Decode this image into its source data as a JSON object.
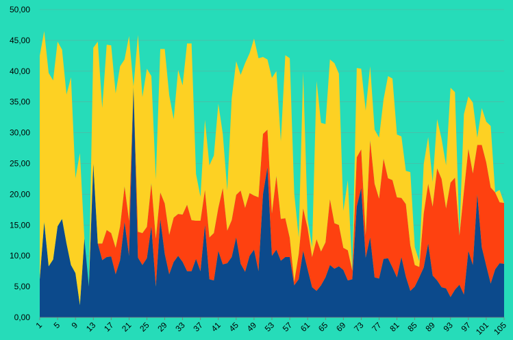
{
  "chart_data": {
    "type": "area",
    "stacked": true,
    "grid": true,
    "ylim": [
      0,
      50
    ],
    "yticks": [
      "0,00",
      "5,00",
      "10,00",
      "15,00",
      "20,00",
      "25,00",
      "30,00",
      "35,00",
      "40,00",
      "45,00",
      "50,00"
    ],
    "x": [
      1,
      2,
      3,
      4,
      5,
      6,
      7,
      8,
      9,
      10,
      11,
      12,
      13,
      14,
      15,
      16,
      17,
      18,
      19,
      20,
      21,
      22,
      23,
      24,
      25,
      26,
      27,
      28,
      29,
      30,
      31,
      32,
      33,
      34,
      35,
      36,
      37,
      38,
      39,
      40,
      41,
      42,
      43,
      44,
      45,
      46,
      47,
      48,
      49,
      50,
      51,
      52,
      53,
      54,
      55,
      56,
      57,
      58,
      59,
      60,
      61,
      62,
      63,
      64,
      65,
      66,
      67,
      68,
      69,
      70,
      71,
      72,
      73,
      74,
      75,
      76,
      77,
      78,
      79,
      80,
      81,
      82,
      83,
      84,
      85,
      86,
      87,
      88,
      89,
      90,
      91,
      92,
      93,
      94,
      95,
      96,
      97,
      98,
      99,
      100,
      101,
      102,
      103,
      104,
      105
    ],
    "xtick_labels": [
      "1",
      "5",
      "9",
      "13",
      "17",
      "21",
      "25",
      "29",
      "33",
      "37",
      "41",
      "45",
      "49",
      "53",
      "57",
      "61",
      "65",
      "69",
      "73",
      "77",
      "81",
      "85",
      "89",
      "93",
      "97",
      "101",
      "105"
    ],
    "series": [
      {
        "color": "#0c4a8c",
        "values": [
          6.2,
          15.5,
          8.3,
          9.4,
          14.8,
          16,
          12,
          8.5,
          7.2,
          2,
          12.8,
          5,
          25,
          12,
          9.3,
          9.8,
          9.9,
          7,
          9.3,
          15.5,
          10,
          37.5,
          9.7,
          8.5,
          9.6,
          14.8,
          5,
          16,
          10.3,
          7,
          9,
          10,
          9,
          7.5,
          7.5,
          9.5,
          7.5,
          15,
          6.2,
          6,
          10.8,
          8.6,
          8.8,
          9.8,
          13,
          8.7,
          7.4,
          10,
          11,
          7.5,
          20,
          24.4,
          10,
          11,
          9.2,
          9.8,
          9.8,
          5.2,
          6.2,
          10.8,
          7.8,
          4.9,
          4.3,
          5.2,
          6.5,
          8.5,
          7.9,
          8.3,
          7.7,
          6,
          6.2,
          18,
          21,
          9.7,
          13,
          6.5,
          6.3,
          9.5,
          9.6,
          8.1,
          6.5,
          9.8,
          6.6,
          4.3,
          5,
          6.5,
          8.1,
          12,
          6.8,
          6,
          4.9,
          4.7,
          3.3,
          4.5,
          5.3,
          3.7,
          10.8,
          8.5,
          20,
          11.4,
          8.4,
          5.5,
          7.8,
          8.8,
          8.7
        ]
      },
      {
        "color": "#fe4110",
        "values": [
          0,
          0,
          0,
          0,
          0,
          0,
          0,
          0,
          0,
          0,
          0,
          0,
          0,
          0,
          2.7,
          4.4,
          3.8,
          4.3,
          5.5,
          5.8,
          5.7,
          0,
          4.2,
          5.2,
          5.1,
          7,
          7.8,
          4.3,
          8.2,
          6.4,
          7.2,
          6.8,
          7.7,
          10.8,
          8.3,
          6.2,
          8.2,
          5.7,
          6.8,
          7.7,
          7,
          12.4,
          5.3,
          6,
          6.9,
          11.9,
          10.4,
          10.2,
          8.8,
          12,
          9.8,
          6.1,
          6.9,
          12,
          6.8,
          6.3,
          3.1,
          0.6,
          4.1,
          6.9,
          6.7,
          4.9,
          8.4,
          5.5,
          5.7,
          10.7,
          7.4,
          6.7,
          3.6,
          4.9,
          1.4,
          8,
          6.3,
          3.7,
          15.8,
          15.2,
          13,
          16.3,
          13,
          14.2,
          13,
          9.6,
          11.8,
          7.4,
          3.5,
          1.7,
          8.8,
          9.7,
          11.2,
          18.2,
          17.6,
          13,
          18.6,
          18.2,
          8,
          16.8,
          16.6,
          14.9,
          8,
          16.6,
          16.8,
          15.6,
          12.5,
          9.9,
          9.9
        ]
      },
      {
        "color": "#fdd123",
        "values": [
          36.3,
          31,
          31.4,
          29.1,
          30,
          27.5,
          24.2,
          30.5,
          15.4,
          24.7,
          0,
          0,
          18.8,
          32.8,
          22,
          30.1,
          30.5,
          25.1,
          26,
          20.6,
          30,
          0,
          32,
          22.1,
          25.7,
          17.4,
          9.6,
          23.3,
          25.1,
          22.7,
          16,
          23.4,
          21,
          26.2,
          28.7,
          7.6,
          3.9,
          11.4,
          11.7,
          12.6,
          16.9,
          8.8,
          6.5,
          19.8,
          21.7,
          18.8,
          23.5,
          22.7,
          25.5,
          22.6,
          12.5,
          11.4,
          22,
          17,
          12.6,
          26.5,
          29.2,
          14.3,
          2.7,
          22.1,
          1.4,
          1.6,
          25.7,
          20.9,
          19.2,
          22.7,
          26,
          24.6,
          6,
          11.4,
          0,
          14.5,
          13.1,
          20.2,
          12,
          8.8,
          9.9,
          9.6,
          16.6,
          16.5,
          10.2,
          10,
          5.4,
          11.9,
          2.9,
          0.9,
          8,
          7.6,
          4,
          8,
          6.5,
          7,
          15.4,
          13.9,
          0,
          12.5,
          8.5,
          11.5,
          1.2,
          6,
          6.6,
          10,
          0,
          2,
          0
        ]
      }
    ]
  }
}
